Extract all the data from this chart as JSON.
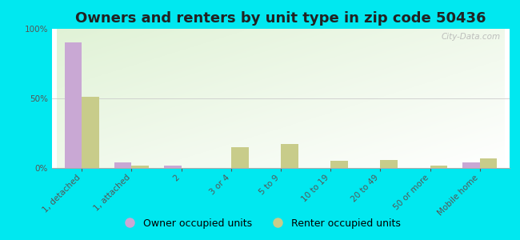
{
  "title": "Owners and renters by unit type in zip code 50436",
  "categories": [
    "1, detached",
    "1, attached",
    "2",
    "3 or 4",
    "5 to 9",
    "10 to 19",
    "20 to 49",
    "50 or more",
    "Mobile home"
  ],
  "owner_values": [
    90,
    4,
    2,
    0,
    0,
    0,
    0,
    0,
    4
  ],
  "renter_values": [
    51,
    2,
    0,
    15,
    17,
    5,
    6,
    2,
    7
  ],
  "owner_color": "#c9a8d4",
  "renter_color": "#c8cc8a",
  "outer_bg_color": "#00e8f0",
  "ylim": [
    0,
    100
  ],
  "yticks": [
    0,
    50,
    100
  ],
  "ytick_labels": [
    "0%",
    "50%",
    "100%"
  ],
  "bar_width": 0.35,
  "legend_labels": [
    "Owner occupied units",
    "Renter occupied units"
  ],
  "watermark": "City-Data.com",
  "title_fontsize": 13,
  "tick_fontsize": 7.5,
  "legend_fontsize": 9
}
